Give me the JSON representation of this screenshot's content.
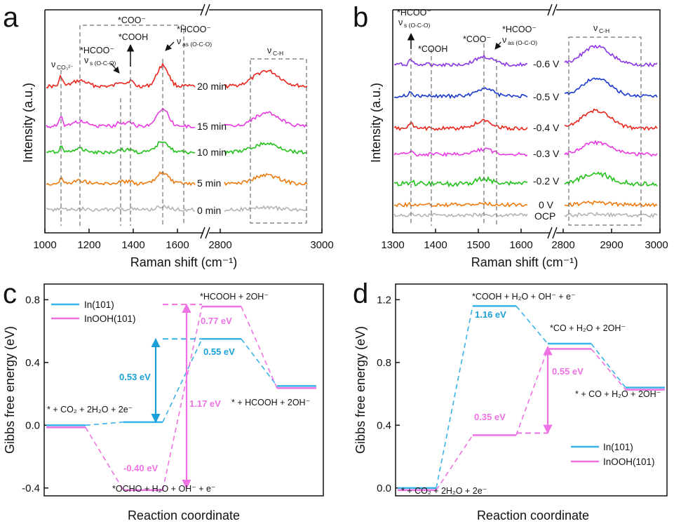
{
  "colors": {
    "red": "#e8261c",
    "magenta": "#e83ae0",
    "green": "#23c21b",
    "orange": "#ec7b10",
    "gray": "#b4b4b4",
    "purple": "#8a35e6",
    "blue": "#1a38cc",
    "in101": "#39b2e7",
    "inooh101": "#ee72e3",
    "axis": "#111111",
    "dashed": "#707070"
  },
  "panel_a": {
    "letter": "a",
    "xlabel": "Raman shift (cm⁻¹)",
    "ylabel": "Intensity (a.u.)",
    "x_ticks": [
      "1000",
      "1200",
      "1400",
      "1600",
      "2800",
      "3000"
    ],
    "traces": [
      {
        "label": "20 min",
        "color_key": "red"
      },
      {
        "label": "15 min",
        "color_key": "magenta"
      },
      {
        "label": "10 min",
        "color_key": "green"
      },
      {
        "label": "5 min",
        "color_key": "orange"
      },
      {
        "label": "0 min",
        "color_key": "gray"
      }
    ],
    "annotations": {
      "nu_co3": "ν",
      "nu_co3_sub": "CO₃²⁻",
      "coo": "*COO⁻",
      "cooh": "*COOH",
      "hcoo_s": "*HCOO⁻",
      "nu_s": "ν",
      "nu_s_sub": "s (O-C-O)",
      "hcoo_as": "*HCOO⁻",
      "nu_as": "ν",
      "nu_as_sub": "as (O-C-O)",
      "nu_ch": "ν",
      "nu_ch_sub": "C-H"
    }
  },
  "panel_b": {
    "letter": "b",
    "xlabel": "Raman shift (cm⁻¹)",
    "ylabel": "Intensity (a.u.)",
    "x_ticks": [
      "1300",
      "1400",
      "1500",
      "1600",
      "2800",
      "2900",
      "3000"
    ],
    "traces": [
      {
        "label": "-0.6 V",
        "color_key": "purple"
      },
      {
        "label": "-0.5 V",
        "color_key": "blue"
      },
      {
        "label": "-0.4 V",
        "color_key": "red"
      },
      {
        "label": "-0.3 V",
        "color_key": "magenta"
      },
      {
        "label": "-0.2 V",
        "color_key": "green"
      },
      {
        "label": "0 V",
        "color_key": "orange"
      },
      {
        "label": "OCP",
        "color_key": "gray"
      }
    ],
    "annotations": {
      "hcoo_s": "*HCOO⁻",
      "nu_s": "ν",
      "nu_s_sub": "s (O-C-O)",
      "cooh": "*COOH",
      "coo": "*COO⁻",
      "hcoo_as": "*HCOO⁻",
      "nu_as": "ν",
      "nu_as_sub": "as (O-C-O)",
      "nu_ch": "ν",
      "nu_ch_sub": "C-H"
    }
  },
  "chart_data": [
    {
      "panel": "c",
      "type": "line",
      "title": "",
      "xlabel": "Reaction coordinate",
      "ylabel": "Gibbs free energy (eV)",
      "ylim": [
        -0.45,
        0.9
      ],
      "y_ticks": [
        "-0.4",
        "0.0",
        "0.4",
        "0.8"
      ],
      "states": [
        "* + CO₂ + 2H₂O + 2e⁻",
        "*OCHO + H₂O + OH⁻ + e⁻",
        "*HCOOH + 2OH⁻",
        "* + HCOOH + 2OH⁻"
      ],
      "series": [
        {
          "name": "In(101)",
          "color_key": "in101",
          "values": [
            0.0,
            0.02,
            0.55,
            0.25
          ]
        },
        {
          "name": "InOOH(101)",
          "color_key": "inooh101",
          "values": [
            0.0,
            -0.4,
            0.77,
            0.25
          ]
        }
      ],
      "barriers": [
        {
          "series": "In(101)",
          "from": 0.02,
          "to": 0.55,
          "label": "0.53 eV"
        },
        {
          "series": "InOOH(101)",
          "from": -0.4,
          "to": 0.77,
          "label": "1.17 eV"
        }
      ],
      "value_labels": [
        {
          "series": "InOOH(101)",
          "text": "-0.40 eV"
        },
        {
          "series": "InOOH(101)",
          "text": "0.77 eV"
        },
        {
          "series": "In(101)",
          "text": "0.55 eV"
        }
      ],
      "legend": "top-left"
    },
    {
      "panel": "d",
      "type": "line",
      "title": "",
      "xlabel": "Reaction coordinate",
      "ylabel": "Gibbs free energy (eV)",
      "ylim": [
        -0.05,
        1.3
      ],
      "y_ticks": [
        "0.0",
        "0.4",
        "0.8",
        "1.2"
      ],
      "states": [
        "* + CO₂ + 2H₂O + 2e⁻",
        "*COOH + H₂O + OH⁻ + e⁻",
        "*CO + H₂O + 2OH⁻",
        "* + CO + H₂O + 2OH⁻"
      ],
      "series": [
        {
          "name": "In(101)",
          "color_key": "in101",
          "values": [
            0.0,
            1.16,
            0.92,
            0.64
          ]
        },
        {
          "name": "InOOH(101)",
          "color_key": "inooh101",
          "values": [
            0.0,
            0.35,
            0.9,
            0.64
          ]
        }
      ],
      "barriers": [
        {
          "series": "InOOH(101)",
          "from": 0.35,
          "to": 0.9,
          "label": "0.55 eV"
        }
      ],
      "value_labels": [
        {
          "series": "In(101)",
          "text": "1.16 eV"
        },
        {
          "series": "InOOH(101)",
          "text": "0.35 eV"
        }
      ],
      "legend": "bottom-right"
    }
  ]
}
